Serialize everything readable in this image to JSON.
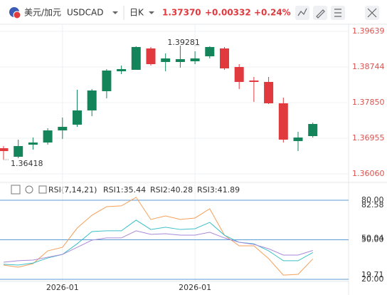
{
  "header": {
    "pair_name": "美元/加元",
    "symbol": "USDCAD",
    "period": "日K",
    "price": "1.37370",
    "change": "+0.00332",
    "change_pct": "+0.24%"
  },
  "chart_data": [
    {
      "type": "candlestick",
      "categories": [
        null,
        null,
        null,
        null,
        "2026-01",
        null,
        null,
        null,
        null,
        null,
        null,
        null,
        null,
        "2026-01",
        null,
        null,
        null,
        null,
        null,
        null,
        null,
        null
      ],
      "open": [
        1.36704,
        1.36489,
        1.36793,
        1.36847,
        1.37151,
        1.37295,
        1.37653,
        1.38136,
        1.38637,
        1.38673,
        1.3921,
        1.3887,
        1.3887,
        1.38888,
        1.39013,
        1.3921,
        1.38744,
        1.38404,
        1.38369,
        1.37832,
        1.36883,
        1.37008
      ],
      "high": [
        1.36758,
        1.36919,
        1.36972,
        1.37205,
        1.37474,
        1.38172,
        1.3819,
        1.38691,
        1.3878,
        1.39264,
        1.39246,
        1.39085,
        1.39281,
        1.39138,
        1.39264,
        1.39246,
        1.38816,
        1.38494,
        1.38494,
        1.37975,
        1.37116,
        1.37348
      ],
      "low": [
        1.36418,
        1.36453,
        1.36668,
        1.36793,
        1.36937,
        1.37241,
        1.37509,
        1.37957,
        1.38565,
        1.38673,
        1.3878,
        1.38637,
        1.38727,
        1.38816,
        1.38959,
        1.38673,
        1.3819,
        1.37867,
        1.37814,
        1.36847,
        1.36632,
        1.36972
      ],
      "close": [
        1.36632,
        1.36758,
        1.36847,
        1.37151,
        1.37241,
        1.37653,
        1.38154,
        1.38655,
        1.38691,
        1.39246,
        1.38816,
        1.38959,
        1.38941,
        1.38959,
        1.39246,
        1.38709,
        1.38369,
        1.38369,
        1.37832,
        1.36919,
        1.36972,
        1.37312
      ],
      "up_color": "#14855a",
      "down_color": "#e0393e",
      "ylim": [
        1.35916,
        1.3989
      ],
      "yticks": [
        1.39639,
        1.38744,
        {
          "value": 1.3785,
          "label": "1.37850"
        },
        1.36955,
        {
          "value": 1.3606,
          "label": "1.36060"
        }
      ],
      "annotations": [
        {
          "value": 1.39281,
          "label": "1.39281"
        },
        {
          "value": 1.36418,
          "label": "1.36418"
        }
      ],
      "grid": true
    },
    {
      "type": "line",
      "title": "RSI(7,14,21)",
      "ylim": [
        15.7,
        87
      ],
      "yticks": [
        {
          "value": 80,
          "label": "80.00"
        },
        {
          "value": 50,
          "label": "50.00"
        },
        {
          "value": 20,
          "label": "20.00"
        }
      ],
      "value_marks": [
        82.58,
        50.04,
        19.71
      ],
      "series": [
        {
          "name": "RSI1:35.44",
          "color": "#f5a05a",
          "values": [
            30.8,
            29.2,
            31.9,
            41.6,
            44.3,
            58.9,
            68.6,
            75.1,
            75.7,
            82.2,
            65.4,
            68.1,
            65.4,
            66.5,
            73.5,
            53.5,
            45.4,
            45.4,
            35.7,
            23.2,
            23.8,
            35.44
          ]
        },
        {
          "name": "RSI2:40.28",
          "color": "#3cc0c8",
          "values": [
            31.4,
            30.8,
            32.4,
            36.2,
            38.9,
            47.0,
            56.2,
            56.8,
            56.8,
            64.9,
            57.8,
            59.5,
            57.8,
            58.4,
            63.2,
            53.5,
            48.1,
            47.0,
            41.6,
            34.1,
            34.1,
            40.28
          ]
        },
        {
          "name": "RSI3:41.89",
          "color": "#a98ad8",
          "values": [
            33.0,
            34.1,
            34.6,
            36.8,
            38.9,
            44.3,
            49.7,
            51.4,
            51.4,
            56.8,
            54.1,
            54.6,
            53.5,
            53.5,
            55.7,
            51.4,
            48.1,
            46.5,
            43.2,
            38.4,
            38.4,
            41.89
          ]
        }
      ]
    }
  ]
}
